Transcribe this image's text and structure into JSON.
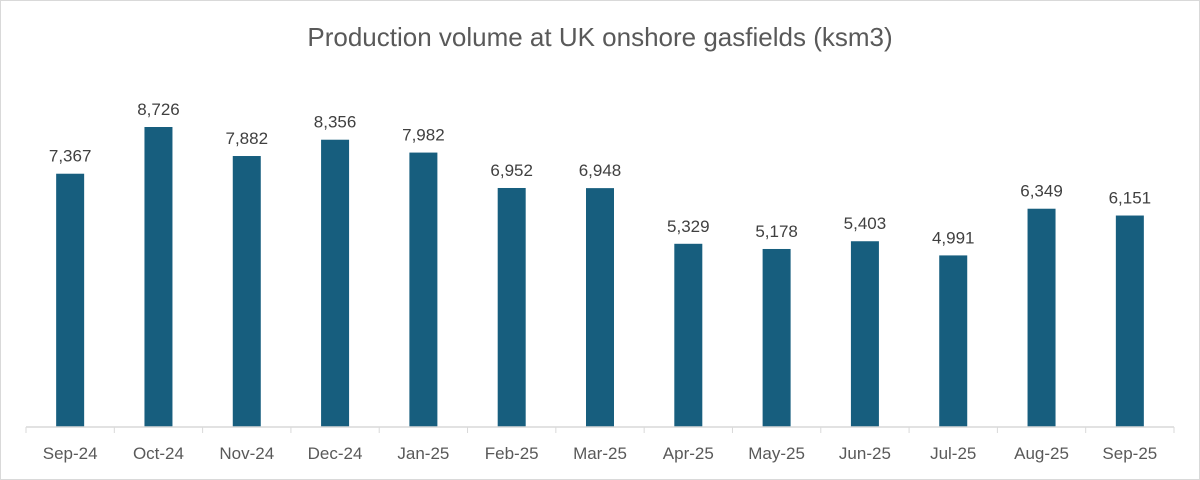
{
  "chart_data": {
    "type": "bar",
    "title": "Production volume at UK onshore gasfields (ksm3)",
    "xlabel": "",
    "ylabel": "",
    "categories": [
      "Sep-24",
      "Oct-24",
      "Nov-24",
      "Dec-24",
      "Jan-25",
      "Feb-25",
      "Mar-25",
      "Apr-25",
      "May-25",
      "Jun-25",
      "Jul-25",
      "Aug-25",
      "Sep-25"
    ],
    "values": [
      7367,
      8726,
      7882,
      8356,
      7982,
      6952,
      6948,
      5329,
      5178,
      5403,
      4991,
      6349,
      6151
    ],
    "data_labels": [
      "7,367",
      "8,726",
      "7,882",
      "8,356",
      "7,982",
      "6,952",
      "6,948",
      "5,329",
      "5,178",
      "5,403",
      "4,991",
      "6,349",
      "6,151"
    ],
    "ylim": [
      0,
      10000
    ],
    "grid": false,
    "legend": "none",
    "bar_color": "#175E7E"
  }
}
